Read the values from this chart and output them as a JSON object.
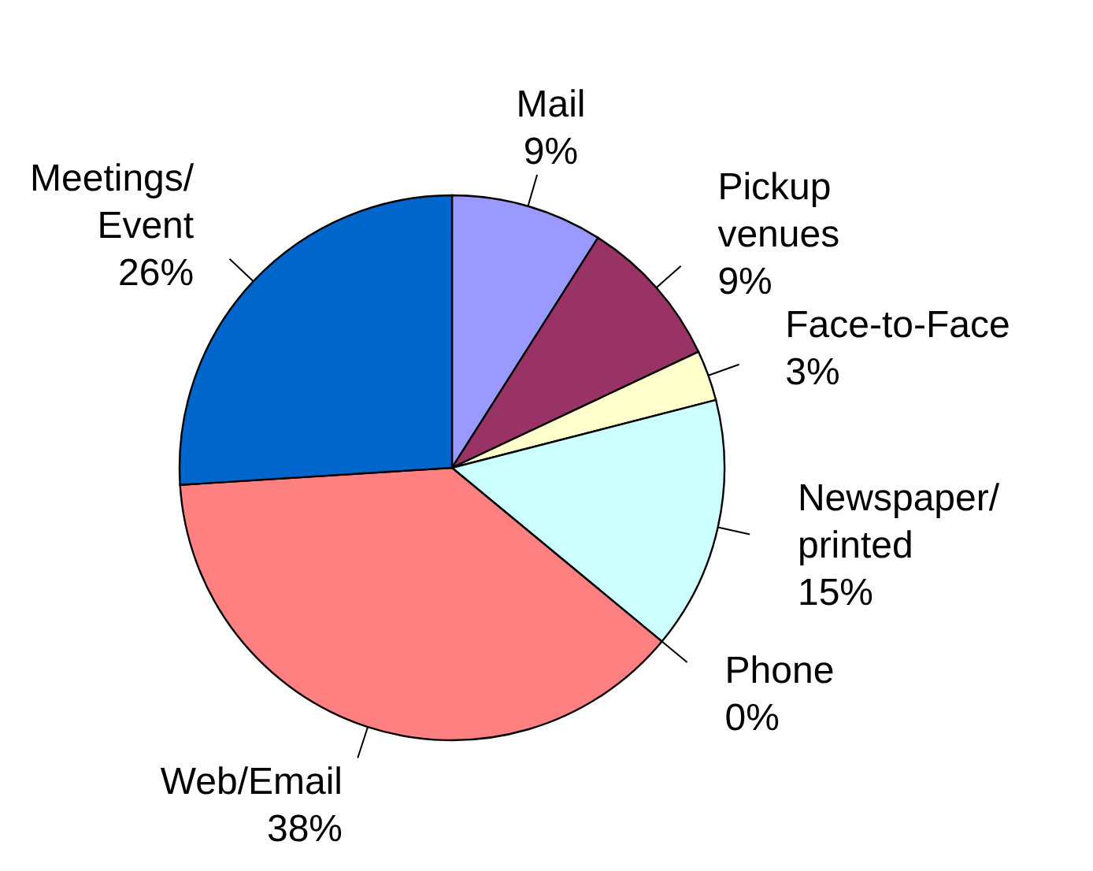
{
  "chart_data": {
    "type": "pie",
    "categories": [
      "Mail",
      "Pickup\nvenues",
      "Face-to-Face",
      "Newspaper/\nprinted",
      "Phone",
      "Web/Email",
      "Meetings/\nEvent"
    ],
    "values": [
      9,
      9,
      3,
      15,
      0,
      38,
      26
    ],
    "colors": [
      "#9999ff",
      "#993366",
      "#ffffcc",
      "#ccffff",
      "#ff99cc",
      "#ff8080",
      "#0066cc"
    ],
    "value_labels": [
      "9%",
      "9%",
      "3%",
      "15%",
      "0%",
      "38%",
      "26%"
    ]
  }
}
